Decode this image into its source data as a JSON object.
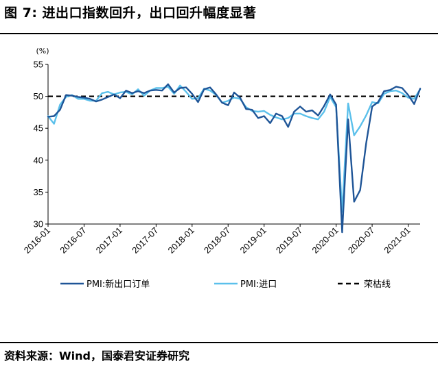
{
  "header": {
    "title": "图 7:  进出口指数回升，出口回升幅度显著"
  },
  "footer": {
    "source": "资料来源：Wind，国泰君安证券研究"
  },
  "colors": {
    "new_export_orders": "#1f5597",
    "imports": "#5bc0eb",
    "threshold": "#000000"
  },
  "chart_data": {
    "type": "line",
    "unit": "(%)",
    "ylim": [
      30,
      55
    ],
    "yticks": [
      30,
      35,
      40,
      45,
      50,
      55
    ],
    "xtick_labels": [
      "2016-01",
      "2016-07",
      "2017-01",
      "2017-07",
      "2018-01",
      "2018-07",
      "2019-01",
      "2019-07",
      "2020-01",
      "2020-07",
      "2021-01"
    ],
    "x": [
      "2016-01",
      "2016-02",
      "2016-03",
      "2016-04",
      "2016-05",
      "2016-06",
      "2016-07",
      "2016-08",
      "2016-09",
      "2016-10",
      "2016-11",
      "2016-12",
      "2017-01",
      "2017-02",
      "2017-03",
      "2017-04",
      "2017-05",
      "2017-06",
      "2017-07",
      "2017-08",
      "2017-09",
      "2017-10",
      "2017-11",
      "2017-12",
      "2018-01",
      "2018-02",
      "2018-03",
      "2018-04",
      "2018-05",
      "2018-06",
      "2018-07",
      "2018-08",
      "2018-09",
      "2018-10",
      "2018-11",
      "2018-12",
      "2019-01",
      "2019-02",
      "2019-03",
      "2019-04",
      "2019-05",
      "2019-06",
      "2019-07",
      "2019-08",
      "2019-09",
      "2019-10",
      "2019-11",
      "2019-12",
      "2020-01",
      "2020-02",
      "2020-03",
      "2020-04",
      "2020-05",
      "2020-06",
      "2020-07",
      "2020-08",
      "2020-09",
      "2020-10",
      "2020-11",
      "2020-12",
      "2021-01",
      "2021-02",
      "2021-03"
    ],
    "series": [
      {
        "name": "PMI:新出口订单",
        "values": [
          46.8,
          46.9,
          47.9,
          50.2,
          50.1,
          49.9,
          49.8,
          49.6,
          49.2,
          49.5,
          49.9,
          50.3,
          49.7,
          50.9,
          50.5,
          50.8,
          50.5,
          50.9,
          51.0,
          50.9,
          51.9,
          50.6,
          51.3,
          51.4,
          50.4,
          49.1,
          51.1,
          51.4,
          50.3,
          49.0,
          48.6,
          50.6,
          49.8,
          48.0,
          47.9,
          46.6,
          46.9,
          45.8,
          47.3,
          46.9,
          45.2,
          47.6,
          48.4,
          47.6,
          47.8,
          47.0,
          48.5,
          50.3,
          48.7,
          28.7,
          46.4,
          33.5,
          35.3,
          42.6,
          48.4,
          49.1,
          50.8,
          51.0,
          51.5,
          51.3,
          50.2,
          48.8,
          51.2
        ]
      },
      {
        "name": "PMI:进口",
        "values": [
          46.9,
          45.7,
          48.7,
          49.9,
          50.2,
          49.6,
          49.6,
          49.3,
          49.3,
          50.5,
          50.7,
          50.3,
          50.6,
          50.7,
          50.3,
          51.1,
          50.1,
          50.9,
          51.3,
          51.3,
          51.5,
          50.4,
          51.7,
          50.7,
          49.6,
          49.7,
          51.2,
          50.9,
          50.2,
          49.0,
          49.3,
          49.8,
          49.6,
          48.3,
          47.7,
          47.6,
          47.7,
          47.1,
          46.7,
          46.4,
          46.6,
          47.3,
          47.3,
          46.9,
          46.6,
          46.4,
          47.6,
          49.9,
          48.3,
          31.9,
          48.9,
          43.9,
          45.3,
          47.0,
          49.1,
          48.9,
          50.4,
          50.8,
          50.9,
          50.5,
          49.8,
          49.6,
          51.1
        ]
      }
    ],
    "reference_line": {
      "name": "荣枯线",
      "value": 50
    }
  }
}
